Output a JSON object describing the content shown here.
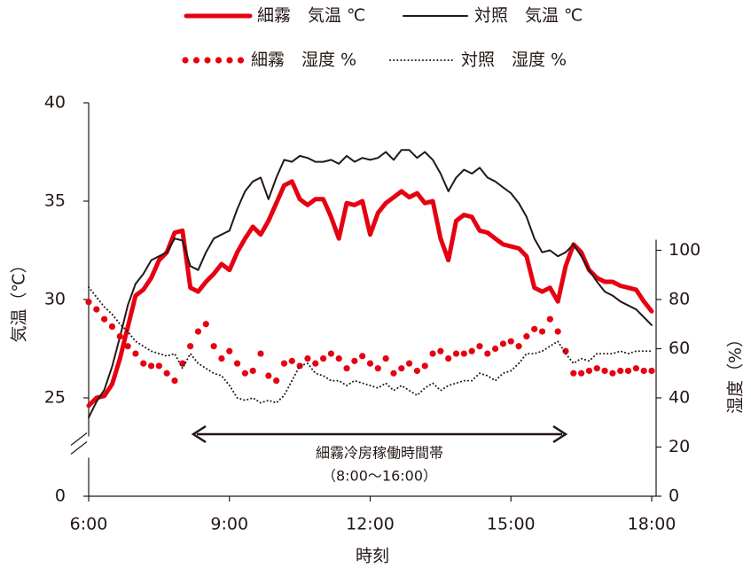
{
  "chart_data": {
    "type": "line",
    "x": [
      360,
      370,
      380,
      390,
      400,
      410,
      420,
      430,
      440,
      450,
      460,
      470,
      480,
      490,
      500,
      510,
      520,
      530,
      540,
      550,
      560,
      570,
      580,
      590,
      600,
      610,
      620,
      630,
      640,
      650,
      660,
      670,
      680,
      690,
      700,
      710,
      720,
      730,
      740,
      750,
      760,
      770,
      780,
      790,
      800,
      810,
      820,
      830,
      840,
      850,
      860,
      870,
      880,
      890,
      900,
      910,
      920,
      930,
      940,
      950,
      960,
      970,
      980,
      990,
      1000,
      1010,
      1020,
      1030,
      1040,
      1050,
      1060,
      1070,
      1080
    ],
    "xlim": [
      360,
      1080
    ],
    "xticks": [
      {
        "value": 360,
        "label": "6:00"
      },
      {
        "value": 540,
        "label": "9:00"
      },
      {
        "value": 720,
        "label": "12:00"
      },
      {
        "value": 900,
        "label": "15:00"
      },
      {
        "value": 1080,
        "label": "18:00"
      }
    ],
    "xlabel": "時刻",
    "ylabel": "気温（℃）",
    "y2label": "湿度（%）",
    "ylim": [
      0,
      40
    ],
    "yticks": [
      0,
      25,
      30,
      35,
      40
    ],
    "axis_break": true,
    "y2lim": [
      0,
      160
    ],
    "y2ticks": [
      0,
      20,
      40,
      60,
      80,
      100
    ],
    "annotation": [
      "細霧冷房稼働時間帯",
      "（8:00〜16:00）"
    ],
    "series": [
      {
        "name": "細霧　気温 ℃",
        "color": "#e60012",
        "style": "line",
        "width": 5,
        "values": [
          24.6,
          25.0,
          25.1,
          25.7,
          27.0,
          28.6,
          30.2,
          30.5,
          31.1,
          32.0,
          32.4,
          33.4,
          33.5,
          30.6,
          30.4,
          30.9,
          31.3,
          31.8,
          31.5,
          32.4,
          33.1,
          33.7,
          33.3,
          34.0,
          34.9,
          35.8,
          36.0,
          35.1,
          34.8,
          35.1,
          35.1,
          34.2,
          33.1,
          34.9,
          34.8,
          35.0,
          33.3,
          34.4,
          34.9,
          35.2,
          35.5,
          35.2,
          35.4,
          34.9,
          35.0,
          33.1,
          32.0,
          34.0,
          34.3,
          34.2,
          33.5,
          33.4,
          33.1,
          32.8,
          32.7,
          32.6,
          32.2,
          30.6,
          30.4,
          30.6,
          29.9,
          31.7,
          32.8,
          32.4,
          31.5,
          31.1,
          30.9,
          30.9,
          30.7,
          30.6,
          30.5,
          29.9,
          29.4
        ]
      },
      {
        "name": "対照　気温 ℃",
        "color": "#231815",
        "style": "line",
        "width": 2,
        "values": [
          24.0,
          24.8,
          25.4,
          26.6,
          28.1,
          29.7,
          30.8,
          31.3,
          32.0,
          32.2,
          32.4,
          33.1,
          33.0,
          31.7,
          31.5,
          32.4,
          33.1,
          33.3,
          33.5,
          34.6,
          35.5,
          36.0,
          36.2,
          35.1,
          36.2,
          37.1,
          37.0,
          37.3,
          37.2,
          37.0,
          37.0,
          37.1,
          36.9,
          37.3,
          37.0,
          37.2,
          37.1,
          37.2,
          37.5,
          37.1,
          37.6,
          37.6,
          37.2,
          37.5,
          37.1,
          36.4,
          35.5,
          36.2,
          36.6,
          36.4,
          36.7,
          36.2,
          36.0,
          35.7,
          35.4,
          34.9,
          34.2,
          33.1,
          32.4,
          32.5,
          32.2,
          32.4,
          32.8,
          32.2,
          31.5,
          30.9,
          30.4,
          30.2,
          29.9,
          29.7,
          29.5,
          29.1,
          28.7
        ]
      },
      {
        "name": "細霧　湿度 %",
        "color": "#e60012",
        "style": "dots",
        "axis": "y2",
        "values": [
          79,
          76,
          72,
          69,
          65,
          61,
          58,
          54,
          53,
          53,
          50,
          47,
          54,
          61,
          67,
          70,
          61,
          56,
          59,
          54,
          50,
          51,
          58,
          49,
          47,
          54,
          55,
          53,
          56,
          54,
          56,
          58,
          56,
          52,
          55,
          57,
          54,
          52,
          56,
          50,
          52,
          54,
          51,
          53,
          58,
          59,
          56,
          58,
          58,
          59,
          61,
          58,
          60,
          62,
          63,
          61,
          65,
          68,
          67,
          72,
          67,
          59,
          50,
          50,
          51,
          52,
          51,
          50,
          51,
          51,
          52,
          51,
          51
        ]
      },
      {
        "name": "対照　湿度 %",
        "color": "#231815",
        "style": "dotted",
        "width": 2,
        "axis": "y2",
        "values": [
          85,
          81,
          77,
          74,
          70,
          67,
          63,
          61,
          59,
          58,
          57,
          58,
          52,
          58,
          54,
          52,
          50,
          49,
          45,
          40,
          39,
          40,
          38,
          39,
          38,
          41,
          47,
          53,
          54,
          50,
          49,
          47,
          47,
          45,
          47,
          46,
          45,
          44,
          46,
          43,
          45,
          43,
          41,
          44,
          46,
          43,
          45,
          46,
          47,
          47,
          50,
          49,
          47,
          50,
          51,
          54,
          58,
          58,
          59,
          61,
          63,
          58,
          54,
          56,
          55,
          58,
          58,
          58,
          59,
          58,
          59,
          59,
          59
        ]
      }
    ]
  }
}
